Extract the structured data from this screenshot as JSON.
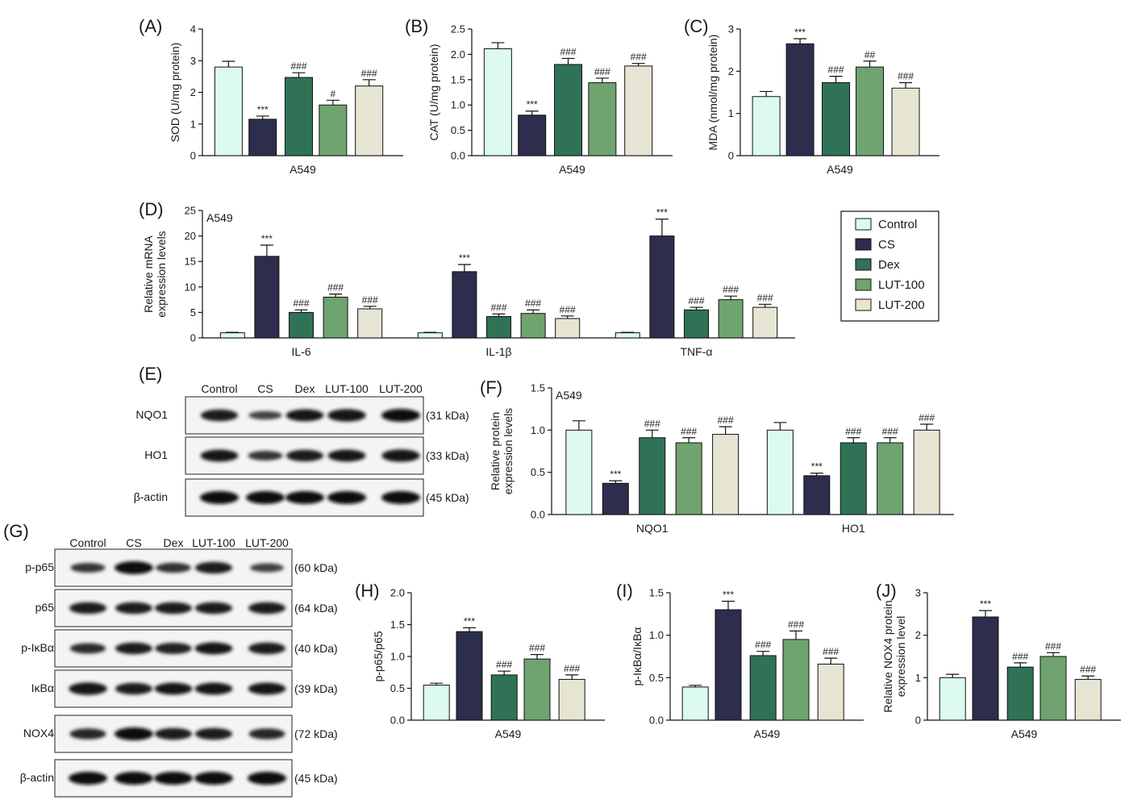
{
  "colors": {
    "Control": "#dcfaf0",
    "CS": "#2d2d4d",
    "Dex": "#2f7256",
    "LUT-100": "#6fa36f",
    "LUT-200": "#e6e5d4"
  },
  "legend": {
    "items": [
      "Control",
      "CS",
      "Dex",
      "LUT-100",
      "LUT-200"
    ]
  },
  "chart_data": [
    {
      "id": "A",
      "panel_label": "(A)",
      "type": "bar",
      "ylabel": "SOD (U/mg protein)",
      "xlabel": "A549",
      "ylim": [
        0,
        4
      ],
      "yticks": [
        "0",
        "1",
        "2",
        "3",
        "4"
      ],
      "series": [
        {
          "name": "Control",
          "value": 2.8,
          "err": 0.18,
          "sig": ""
        },
        {
          "name": "CS",
          "value": 1.15,
          "err": 0.1,
          "sig": "***"
        },
        {
          "name": "Dex",
          "value": 2.47,
          "err": 0.15,
          "sig": "###"
        },
        {
          "name": "LUT-100",
          "value": 1.6,
          "err": 0.15,
          "sig": "#"
        },
        {
          "name": "LUT-200",
          "value": 2.2,
          "err": 0.2,
          "sig": "###"
        }
      ]
    },
    {
      "id": "B",
      "panel_label": "(B)",
      "type": "bar",
      "ylabel": "CAT (U/mg protein)",
      "xlabel": "A549",
      "ylim": [
        0,
        2.5
      ],
      "yticks": [
        "0.0",
        "0.5",
        "1.0",
        "1.5",
        "2.0",
        "2.5"
      ],
      "series": [
        {
          "name": "Control",
          "value": 2.11,
          "err": 0.12,
          "sig": ""
        },
        {
          "name": "CS",
          "value": 0.8,
          "err": 0.08,
          "sig": "***"
        },
        {
          "name": "Dex",
          "value": 1.8,
          "err": 0.12,
          "sig": "###"
        },
        {
          "name": "LUT-100",
          "value": 1.44,
          "err": 0.09,
          "sig": "###"
        },
        {
          "name": "LUT-200",
          "value": 1.77,
          "err": 0.05,
          "sig": "###"
        }
      ]
    },
    {
      "id": "C",
      "panel_label": "(C)",
      "type": "bar",
      "ylabel": "MDA (nmol/mg protein)",
      "xlabel": "A549",
      "ylim": [
        0,
        3
      ],
      "yticks": [
        "0",
        "1",
        "2",
        "3"
      ],
      "series": [
        {
          "name": "Control",
          "value": 1.4,
          "err": 0.12,
          "sig": ""
        },
        {
          "name": "CS",
          "value": 2.65,
          "err": 0.12,
          "sig": "***"
        },
        {
          "name": "Dex",
          "value": 1.73,
          "err": 0.15,
          "sig": "###"
        },
        {
          "name": "LUT-100",
          "value": 2.1,
          "err": 0.14,
          "sig": "##"
        },
        {
          "name": "LUT-200",
          "value": 1.6,
          "err": 0.13,
          "sig": "###"
        }
      ]
    },
    {
      "id": "D",
      "panel_label": "(D)",
      "type": "bar",
      "inset_label": "A549",
      "ylabel": [
        "Relative mRNA",
        "expression levels"
      ],
      "xlabel": "",
      "ylim": [
        0,
        25
      ],
      "yticks": [
        "0",
        "5",
        "10",
        "15",
        "20",
        "25"
      ],
      "categories": [
        "IL-6",
        "IL-1β",
        "TNF-α"
      ],
      "series": [
        {
          "name": "Control",
          "values": [
            1,
            1,
            1
          ],
          "err": [
            0.1,
            0.1,
            0.1
          ],
          "sig": [
            "",
            "",
            ""
          ]
        },
        {
          "name": "CS",
          "values": [
            16,
            13,
            20
          ],
          "err": [
            2.2,
            1.4,
            3.3
          ],
          "sig": [
            "***",
            "***",
            "***"
          ]
        },
        {
          "name": "Dex",
          "values": [
            5,
            4.2,
            5.5
          ],
          "err": [
            0.5,
            0.5,
            0.5
          ],
          "sig": [
            "###",
            "###",
            "###"
          ]
        },
        {
          "name": "LUT-100",
          "values": [
            8,
            4.8,
            7.5
          ],
          "err": [
            0.6,
            0.7,
            0.7
          ],
          "sig": [
            "###",
            "###",
            "###"
          ]
        },
        {
          "name": "LUT-200",
          "values": [
            5.7,
            3.8,
            6
          ],
          "err": [
            0.5,
            0.5,
            0.6
          ],
          "sig": [
            "###",
            "###",
            "###"
          ]
        }
      ]
    },
    {
      "id": "F",
      "panel_label": "(F)",
      "type": "bar",
      "inset_label": "A549",
      "ylabel": [
        "Relative protein",
        "expression levels"
      ],
      "xlabel": "",
      "ylim": [
        0,
        1.5
      ],
      "yticks": [
        "0.0",
        "0.5",
        "1.0",
        "1.5"
      ],
      "categories": [
        "NQO1",
        "HO1"
      ],
      "series": [
        {
          "name": "Control",
          "values": [
            1.0,
            1.0
          ],
          "err": [
            0.11,
            0.09
          ],
          "sig": [
            "",
            ""
          ]
        },
        {
          "name": "CS",
          "values": [
            0.37,
            0.46
          ],
          "err": [
            0.03,
            0.03
          ],
          "sig": [
            "***",
            "***"
          ]
        },
        {
          "name": "Dex",
          "values": [
            0.91,
            0.85
          ],
          "err": [
            0.09,
            0.06
          ],
          "sig": [
            "###",
            "###"
          ]
        },
        {
          "name": "LUT-100",
          "values": [
            0.85,
            0.85
          ],
          "err": [
            0.06,
            0.06
          ],
          "sig": [
            "###",
            "###"
          ]
        },
        {
          "name": "LUT-200",
          "values": [
            0.95,
            1.0
          ],
          "err": [
            0.09,
            0.07
          ],
          "sig": [
            "###",
            "###"
          ]
        }
      ]
    },
    {
      "id": "H",
      "panel_label": "(H)",
      "type": "bar",
      "ylabel": "p-p65/p65",
      "xlabel": "A549",
      "ylim": [
        0,
        2
      ],
      "yticks": [
        "0.0",
        "0.5",
        "1.0",
        "1.5",
        "2.0"
      ],
      "series": [
        {
          "name": "Control",
          "value": 0.55,
          "err": 0.03,
          "sig": ""
        },
        {
          "name": "CS",
          "value": 1.39,
          "err": 0.06,
          "sig": "***"
        },
        {
          "name": "Dex",
          "value": 0.71,
          "err": 0.06,
          "sig": "###"
        },
        {
          "name": "LUT-100",
          "value": 0.96,
          "err": 0.07,
          "sig": "###"
        },
        {
          "name": "LUT-200",
          "value": 0.64,
          "err": 0.07,
          "sig": "###"
        }
      ]
    },
    {
      "id": "I",
      "panel_label": "(I)",
      "type": "bar",
      "ylabel": "p-IκBα/IκBα",
      "xlabel": "A549",
      "ylim": [
        0,
        1.5
      ],
      "yticks": [
        "0.0",
        "0.5",
        "1.0",
        "1.5"
      ],
      "series": [
        {
          "name": "Control",
          "value": 0.39,
          "err": 0.02,
          "sig": ""
        },
        {
          "name": "CS",
          "value": 1.3,
          "err": 0.1,
          "sig": "***"
        },
        {
          "name": "Dex",
          "value": 0.76,
          "err": 0.05,
          "sig": "###"
        },
        {
          "name": "LUT-100",
          "value": 0.95,
          "err": 0.1,
          "sig": "###"
        },
        {
          "name": "LUT-200",
          "value": 0.66,
          "err": 0.07,
          "sig": "###"
        }
      ]
    },
    {
      "id": "J",
      "panel_label": "(J)",
      "type": "bar",
      "ylabel": [
        "Relative NOX4 protein",
        "expression level"
      ],
      "xlabel": "A549",
      "ylim": [
        0,
        3
      ],
      "yticks": [
        "0",
        "1",
        "2",
        "3"
      ],
      "series": [
        {
          "name": "Control",
          "value": 1.0,
          "err": 0.08,
          "sig": ""
        },
        {
          "name": "CS",
          "value": 2.43,
          "err": 0.15,
          "sig": "***"
        },
        {
          "name": "Dex",
          "value": 1.25,
          "err": 0.1,
          "sig": "###"
        },
        {
          "name": "LUT-100",
          "value": 1.5,
          "err": 0.09,
          "sig": "###"
        },
        {
          "name": "LUT-200",
          "value": 0.96,
          "err": 0.08,
          "sig": "###"
        }
      ]
    }
  ],
  "blots": [
    {
      "id": "E",
      "panel_label": "(E)",
      "lanes": [
        "Control",
        "CS",
        "Dex",
        "LUT-100",
        "LUT-200"
      ],
      "rows": [
        {
          "protein": "NQO1",
          "kda": "(31 kDa)",
          "intensity": [
            0.85,
            0.45,
            0.9,
            0.95,
            1.0
          ]
        },
        {
          "protein": "HO1",
          "kda": "(33 kDa)",
          "intensity": [
            0.9,
            0.6,
            0.85,
            0.9,
            0.95
          ]
        },
        {
          "protein": "β-actin",
          "kda": "(45 kDa)",
          "intensity": [
            1.0,
            1.0,
            1.0,
            1.0,
            1.0
          ]
        }
      ]
    },
    {
      "id": "G",
      "panel_label": "(G)",
      "lanes": [
        "Control",
        "CS",
        "Dex",
        "LUT-100",
        "LUT-200"
      ],
      "rows": [
        {
          "protein": "p-p65",
          "kda": "(60 kDa)",
          "intensity": [
            0.6,
            1.0,
            0.65,
            0.85,
            0.5
          ]
        },
        {
          "protein": "p65",
          "kda": "(64 kDa)",
          "intensity": [
            0.85,
            0.85,
            0.85,
            0.85,
            0.85
          ]
        },
        {
          "protein": "p-IκBα",
          "kda": "(40 kDa)",
          "intensity": [
            0.7,
            0.85,
            0.8,
            0.9,
            0.85
          ]
        },
        {
          "protein": "IκBα",
          "kda": "(39 kDa)",
          "intensity": [
            0.95,
            0.85,
            0.9,
            0.9,
            0.9
          ]
        },
        {
          "protein": "NOX4",
          "kda": "(72 kDa)",
          "intensity": [
            0.75,
            1.0,
            0.85,
            0.85,
            0.75
          ]
        },
        {
          "protein": "β-actin",
          "kda": "(45 kDa)",
          "intensity": [
            1.0,
            1.0,
            1.0,
            1.0,
            1.0
          ]
        }
      ]
    }
  ]
}
